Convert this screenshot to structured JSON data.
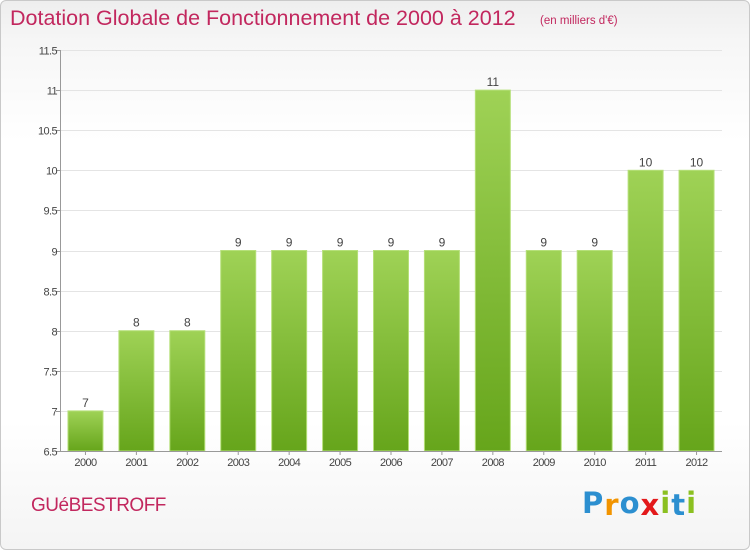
{
  "header": {
    "title": "Dotation Globale de Fonctionnement de 2000 à 2012",
    "subtitle": "(en milliers d'€)"
  },
  "footer": {
    "place": "GUéBESTROFF",
    "logo_letters": [
      "P",
      "r",
      "o",
      "x",
      "i",
      "t",
      "i"
    ],
    "logo_colors": [
      "#2c8fd0",
      "#f29400",
      "#2c8fd0",
      "#e3191b",
      "#8bc020",
      "#2c8fd0",
      "#8bc020"
    ]
  },
  "colors": {
    "bar_top": "#9fd256",
    "bar_bottom": "#66a51b",
    "axis": "#999999"
  },
  "chart_data": {
    "type": "bar",
    "title": "Dotation Globale de Fonctionnement de 2000 à 2012",
    "subtitle": "(en milliers d'€)",
    "categories": [
      "2000",
      "2001",
      "2002",
      "2003",
      "2004",
      "2005",
      "2006",
      "2007",
      "2008",
      "2009",
      "2010",
      "2011",
      "2012"
    ],
    "values": [
      7,
      8,
      8,
      9,
      9,
      9,
      9,
      9,
      11,
      9,
      9,
      10,
      10
    ],
    "data_labels": [
      "7",
      "8",
      "8",
      "9",
      "9",
      "9",
      "9",
      "9",
      "11",
      "9",
      "9",
      "10",
      "10"
    ],
    "ylim": [
      6.5,
      11.5
    ],
    "yticks": [
      6.5,
      7,
      7.5,
      8,
      8.5,
      9,
      9.5,
      10,
      10.5,
      11,
      11.5
    ],
    "ytick_labels": [
      "6.5",
      "7",
      "7.5",
      "8",
      "8.5",
      "9",
      "9.5",
      "10",
      "10.5",
      "11",
      "11.5"
    ],
    "grid": true,
    "legend": "none"
  }
}
